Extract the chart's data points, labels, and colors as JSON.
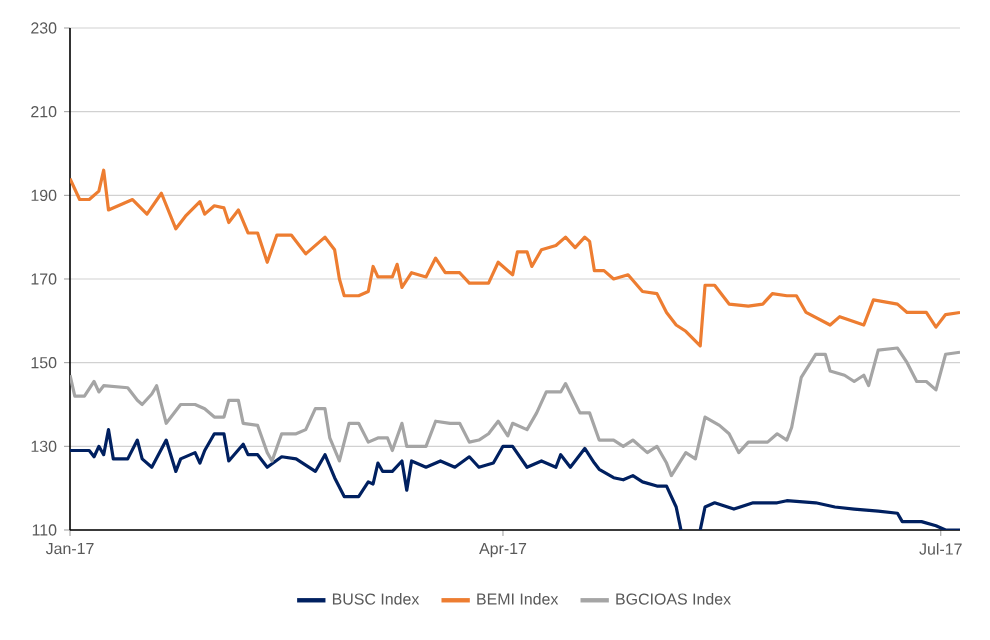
{
  "chart_data": {
    "type": "line",
    "xlim": [
      "2017-01-01",
      "2017-07-05"
    ],
    "xticks": [
      {
        "value": "2017-01-01",
        "label": "Jan-17"
      },
      {
        "value": "2017-04-01",
        "label": "Apr-17"
      },
      {
        "value": "2017-07-01",
        "label": "Jul-17"
      }
    ],
    "ylim": [
      110,
      230
    ],
    "yticks": [
      110,
      130,
      150,
      170,
      190,
      210,
      230
    ],
    "grid": "y",
    "legend": "bottom",
    "line_style": "solid",
    "marker": "none",
    "series": [
      {
        "name": "BUSC Index",
        "color": "#002060",
        "x": [
          "2017-01-01",
          "2017-01-05",
          "2017-01-06",
          "2017-01-07",
          "2017-01-08",
          "2017-01-09",
          "2017-01-10",
          "2017-01-13",
          "2017-01-15",
          "2017-01-16",
          "2017-01-18",
          "2017-01-21",
          "2017-01-23",
          "2017-01-24",
          "2017-01-27",
          "2017-01-28",
          "2017-01-29",
          "2017-01-31",
          "2017-02-02",
          "2017-02-03",
          "2017-02-06",
          "2017-02-07",
          "2017-02-09",
          "2017-02-11",
          "2017-02-14",
          "2017-02-17",
          "2017-02-19",
          "2017-02-21",
          "2017-02-23",
          "2017-02-25",
          "2017-02-27",
          "2017-03-02",
          "2017-03-04",
          "2017-03-05",
          "2017-03-06",
          "2017-03-07",
          "2017-03-09",
          "2017-03-11",
          "2017-03-12",
          "2017-03-13",
          "2017-03-16",
          "2017-03-19",
          "2017-03-22",
          "2017-03-25",
          "2017-03-27",
          "2017-03-30",
          "2017-04-01",
          "2017-04-03",
          "2017-04-06",
          "2017-04-09",
          "2017-04-12",
          "2017-04-13",
          "2017-04-15",
          "2017-04-18",
          "2017-04-20",
          "2017-04-21",
          "2017-04-24",
          "2017-04-26",
          "2017-04-28",
          "2017-04-30",
          "2017-05-03",
          "2017-05-05",
          "2017-05-07",
          "2017-05-08",
          "2017-05-10",
          "2017-05-12",
          "2017-05-13",
          "2017-05-15",
          "2017-05-19",
          "2017-05-23",
          "2017-05-28",
          "2017-05-30",
          "2017-06-05",
          "2017-06-09",
          "2017-06-13",
          "2017-06-18",
          "2017-06-22",
          "2017-06-23",
          "2017-06-27",
          "2017-06-30",
          "2017-07-02",
          "2017-07-05"
        ],
        "values": [
          129,
          129,
          127.5,
          130,
          128,
          134,
          127,
          127,
          131.5,
          127,
          125,
          131.5,
          124,
          127,
          128.5,
          126,
          129,
          133,
          133,
          126.5,
          130.5,
          128,
          128,
          125,
          127.5,
          127,
          125.5,
          124,
          128,
          122.5,
          118,
          118,
          121.5,
          121,
          126,
          124,
          124,
          126.5,
          119.5,
          126.5,
          125,
          126.5,
          125,
          127.5,
          125,
          126,
          130,
          130,
          125,
          126.5,
          125,
          128,
          125,
          129.5,
          126,
          124.5,
          122.5,
          122,
          123,
          121.5,
          120.5,
          120.5,
          115.5,
          110,
          null,
          110,
          115.5,
          116.5,
          115,
          116.5,
          116.5,
          117,
          116.5,
          115.5,
          115,
          114.5,
          114,
          112,
          112,
          111,
          110,
          110
        ]
      },
      {
        "name": "BEMI Index",
        "color": "#ed7d31",
        "x": [
          "2017-01-01",
          "2017-01-03",
          "2017-01-05",
          "2017-01-07",
          "2017-01-08",
          "2017-01-09",
          "2017-01-14",
          "2017-01-17",
          "2017-01-20",
          "2017-01-23",
          "2017-01-25",
          "2017-01-28",
          "2017-01-29",
          "2017-01-31",
          "2017-02-02",
          "2017-02-03",
          "2017-02-05",
          "2017-02-07",
          "2017-02-09",
          "2017-02-11",
          "2017-02-13",
          "2017-02-16",
          "2017-02-19",
          "2017-02-21",
          "2017-02-23",
          "2017-02-25",
          "2017-02-26",
          "2017-02-27",
          "2017-03-02",
          "2017-03-04",
          "2017-03-05",
          "2017-03-06",
          "2017-03-09",
          "2017-03-10",
          "2017-03-11",
          "2017-03-13",
          "2017-03-16",
          "2017-03-18",
          "2017-03-20",
          "2017-03-23",
          "2017-03-25",
          "2017-03-29",
          "2017-03-31",
          "2017-04-03",
          "2017-04-04",
          "2017-04-06",
          "2017-04-07",
          "2017-04-09",
          "2017-04-12",
          "2017-04-14",
          "2017-04-16",
          "2017-04-18",
          "2017-04-19",
          "2017-04-20",
          "2017-04-22",
          "2017-04-24",
          "2017-04-27",
          "2017-04-30",
          "2017-05-03",
          "2017-05-05",
          "2017-05-07",
          "2017-05-09",
          "2017-05-12",
          "2017-05-13",
          "2017-05-15",
          "2017-05-18",
          "2017-05-22",
          "2017-05-25",
          "2017-05-27",
          "2017-05-30",
          "2017-06-01",
          "2017-06-03",
          "2017-06-08",
          "2017-06-10",
          "2017-06-15",
          "2017-06-17",
          "2017-06-22",
          "2017-06-24",
          "2017-06-28",
          "2017-06-30",
          "2017-07-02",
          "2017-07-05"
        ],
        "values": [
          194,
          189,
          189,
          191,
          196,
          186.5,
          189,
          185.5,
          190.5,
          182,
          185,
          188.5,
          185.5,
          187.5,
          187,
          183.5,
          186.5,
          181,
          181,
          174,
          180.5,
          180.5,
          176,
          178,
          180,
          177,
          170,
          166,
          166,
          167,
          173,
          170.5,
          170.5,
          173.5,
          168,
          171.5,
          170.5,
          175,
          171.5,
          171.5,
          169,
          169,
          174,
          171,
          176.5,
          176.5,
          173,
          177,
          178,
          180,
          177.5,
          180,
          179,
          172,
          172,
          170,
          171,
          167,
          166.5,
          162,
          159,
          157.5,
          154,
          168.5,
          168.5,
          164,
          163.5,
          164,
          166.5,
          166,
          166,
          162,
          159,
          161,
          159,
          165,
          164,
          162,
          162,
          158.5,
          161.5,
          162
        ]
      },
      {
        "name": "BGCIOAS Index",
        "color": "#a5a5a5",
        "x": [
          "2017-01-01",
          "2017-01-02",
          "2017-01-04",
          "2017-01-06",
          "2017-01-07",
          "2017-01-08",
          "2017-01-13",
          "2017-01-15",
          "2017-01-16",
          "2017-01-18",
          "2017-01-19",
          "2017-01-21",
          "2017-01-24",
          "2017-01-27",
          "2017-01-29",
          "2017-01-31",
          "2017-02-02",
          "2017-02-03",
          "2017-02-05",
          "2017-02-06",
          "2017-02-09",
          "2017-02-11",
          "2017-02-12",
          "2017-02-14",
          "2017-02-17",
          "2017-02-19",
          "2017-02-21",
          "2017-02-23",
          "2017-02-24",
          "2017-02-26",
          "2017-02-28",
          "2017-03-02",
          "2017-03-04",
          "2017-03-06",
          "2017-03-08",
          "2017-03-09",
          "2017-03-11",
          "2017-03-12",
          "2017-03-16",
          "2017-03-18",
          "2017-03-21",
          "2017-03-23",
          "2017-03-25",
          "2017-03-27",
          "2017-03-29",
          "2017-03-31",
          "2017-04-02",
          "2017-04-03",
          "2017-04-06",
          "2017-04-08",
          "2017-04-10",
          "2017-04-13",
          "2017-04-14",
          "2017-04-17",
          "2017-04-19",
          "2017-04-21",
          "2017-04-24",
          "2017-04-26",
          "2017-04-28",
          "2017-05-01",
          "2017-05-03",
          "2017-05-05",
          "2017-05-06",
          "2017-05-09",
          "2017-05-11",
          "2017-05-13",
          "2017-05-16",
          "2017-05-18",
          "2017-05-20",
          "2017-05-22",
          "2017-05-26",
          "2017-05-28",
          "2017-05-30",
          "2017-05-31",
          "2017-06-02",
          "2017-06-05",
          "2017-06-07",
          "2017-06-08",
          "2017-06-11",
          "2017-06-13",
          "2017-06-15",
          "2017-06-16",
          "2017-06-18",
          "2017-06-22",
          "2017-06-24",
          "2017-06-26",
          "2017-06-28",
          "2017-06-30",
          "2017-07-02",
          "2017-07-05"
        ],
        "values": [
          147,
          142,
          142,
          145.5,
          143,
          144.5,
          144,
          141,
          140,
          142.5,
          144.5,
          135.5,
          140,
          140,
          139,
          137,
          137,
          141,
          141,
          135.5,
          135,
          128.5,
          126.5,
          133,
          133,
          134,
          139,
          139,
          132,
          126.5,
          135.5,
          135.5,
          131,
          132,
          132,
          129,
          135.5,
          130,
          130,
          136,
          135.5,
          135.5,
          131,
          131.5,
          133,
          136,
          132.5,
          135.5,
          134,
          138,
          143,
          143,
          145,
          138,
          138,
          131.5,
          131.5,
          130,
          131.5,
          128.5,
          130,
          126,
          123,
          128.5,
          127,
          137,
          135,
          133,
          128.5,
          131,
          131,
          133,
          131.5,
          134.5,
          146.5,
          152,
          152,
          148,
          147,
          145.5,
          147,
          144.5,
          153,
          153.5,
          150,
          145.5,
          145.5,
          143.5,
          152,
          152.5
        ]
      }
    ]
  }
}
